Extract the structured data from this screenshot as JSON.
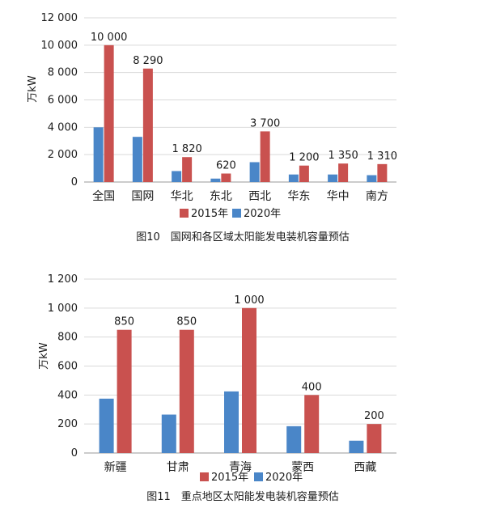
{
  "chart_data": [
    {
      "type": "bar",
      "ylabel": "万kW",
      "ylim": [
        0,
        12000
      ],
      "yticks": [
        "0",
        "2 000",
        "4 000",
        "6 000",
        "8 000",
        "10 000",
        "12 000"
      ],
      "categories": [
        "全国",
        "国网",
        "华北",
        "东北",
        "西北",
        "华东",
        "华中",
        "南方"
      ],
      "series": [
        {
          "name": "2020年",
          "values": [
            4000,
            3300,
            800,
            250,
            1450,
            550,
            550,
            500
          ],
          "color": "#4a86c8"
        },
        {
          "name": "2015年",
          "values": [
            10000,
            8290,
            1820,
            620,
            3700,
            1200,
            1350,
            1310
          ],
          "color": "#c9514f",
          "labels": [
            "10 000",
            "8 290",
            "1 820",
            "620",
            "3 700",
            "1 200",
            "1 350",
            "1 310"
          ]
        }
      ],
      "legend": [
        "2015年",
        "2020年"
      ],
      "caption": "图10　国网和各区域太阳能发电装机容量预估",
      "grid": true
    },
    {
      "type": "bar",
      "ylabel": "万kW",
      "ylim": [
        0,
        1200
      ],
      "yticks": [
        "0",
        "200",
        "400",
        "600",
        "800",
        "1 000",
        "1 200"
      ],
      "categories": [
        "新疆",
        "甘肃",
        "青海",
        "蒙西",
        "西藏"
      ],
      "series": [
        {
          "name": "2020年",
          "values": [
            375,
            265,
            425,
            185,
            85
          ],
          "color": "#4a86c8"
        },
        {
          "name": "2015年",
          "values": [
            850,
            850,
            1000,
            400,
            200
          ],
          "color": "#c9514f",
          "labels": [
            "850",
            "850",
            "1 000",
            "400",
            "200"
          ]
        }
      ],
      "legend": [
        "2015年",
        "2020年"
      ],
      "caption": "图11　重点地区太阳能发电装机容量预估",
      "grid": true
    }
  ]
}
